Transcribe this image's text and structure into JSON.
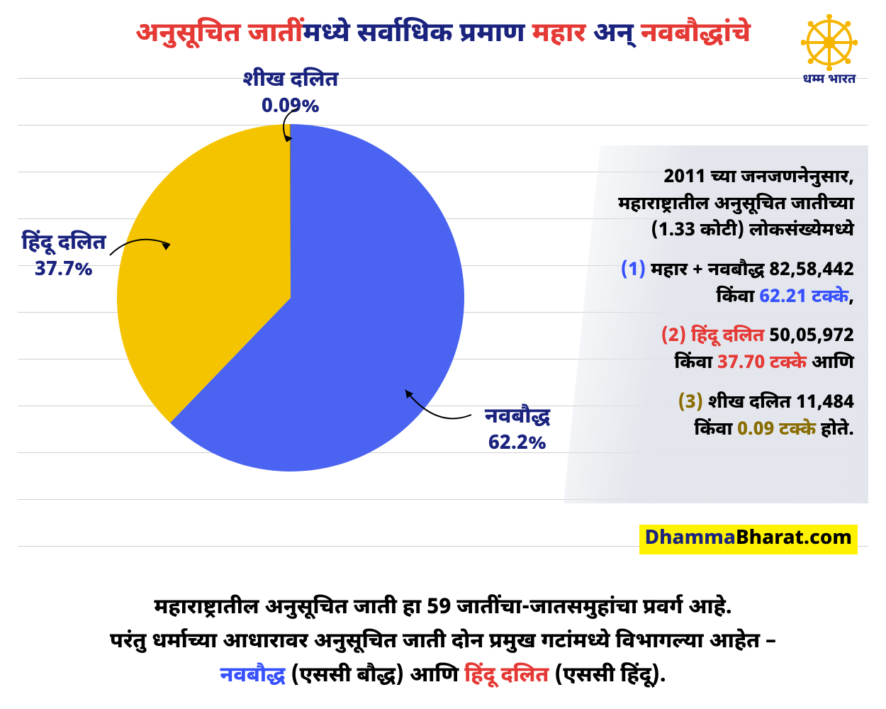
{
  "title": {
    "part1": "अनुसूचित जातीं",
    "part2": "मध्ये सर्वाधिक प्रमाण ",
    "part3": "महार",
    "part4": " अन् ",
    "part5": "नवबौद्धांचे",
    "color_red": "#e53935",
    "color_blue": "#1a237e",
    "fontsize": 38
  },
  "logo": {
    "label": "धम्म भारत",
    "wheel_color": "#f5b500",
    "text_color": "#1a237e"
  },
  "grid": {
    "line_color": "#d0d0d0",
    "count": 11,
    "spacing": 66
  },
  "pie": {
    "type": "pie",
    "background_color": "#ffffff",
    "slices": [
      {
        "key": "navbauddha",
        "label": "नवबौद्ध",
        "value": 62.2,
        "pct_label": "62.2%",
        "color": "#4a63f0"
      },
      {
        "key": "hindu_dalit",
        "label": "हिंदू दलित",
        "value": 37.7,
        "pct_label": "37.7%",
        "color": "#f5c400"
      },
      {
        "key": "shikh_dalit",
        "label": "शीख दलित",
        "value": 0.09,
        "pct_label": "0.09%",
        "color": "#9e7b00"
      }
    ],
    "label_color": "#1a237e",
    "label_name_fontsize": 30,
    "label_pct_fontsize": 28
  },
  "side": {
    "bg_gradient_to": "#e1e4eb",
    "intro_l1": "2011 च्या जनजणनेनुसार,",
    "intro_l2": "महाराष्ट्रातील अनुसूचित जातीच्या",
    "intro_l3": "(1.33 कोटी) लोकसंख्येमध्ये",
    "items": [
      {
        "marker": "(1)",
        "name": "महार + नवबौद्ध",
        "count": "82,58,442",
        "sep": "किंवा",
        "pct": "62.21 टक्के",
        "tail": ",",
        "color": "#3751ff"
      },
      {
        "marker": "(2)",
        "name": "हिंदू दलित",
        "count": "50,05,972",
        "sep": "किंवा",
        "pct": "37.70 टक्के",
        "tail": " आणि",
        "color": "#e53935"
      },
      {
        "marker": "(3)",
        "name": "शीख दलित",
        "count": "11,484",
        "sep": "किंवा",
        "pct": "0.09 टक्के",
        "tail": " होते.",
        "color": "#8a6d00"
      }
    ],
    "font_size": 26
  },
  "site": {
    "part_a": "Dhamma",
    "part_b": "Bharat",
    "part_c": ".com",
    "bg": "#fff200",
    "color_a": "#1a237e",
    "color_b": "#000000"
  },
  "footer": {
    "line1": "महाराष्ट्रातील अनुसूचित जाती हा 59 जातींचा-जातसमुहांचा प्रवर्ग आहे.",
    "line2_a": "परंतु धर्माच्या आधारावर अनुसूचित जाती दोन प्रमुख गटांमध्ये विभागल्या आहेत –",
    "line3_nav": "नवबौद्ध",
    "line3_nav_paren": " (एससी बौद्ध) ",
    "line3_and": "आणि ",
    "line3_hindu": "हिंदू दलित",
    "line3_hindu_paren": " (एससी हिंदू).",
    "color_red": "#e53935",
    "color_blue": "#3751ff",
    "fontsize": 30
  }
}
